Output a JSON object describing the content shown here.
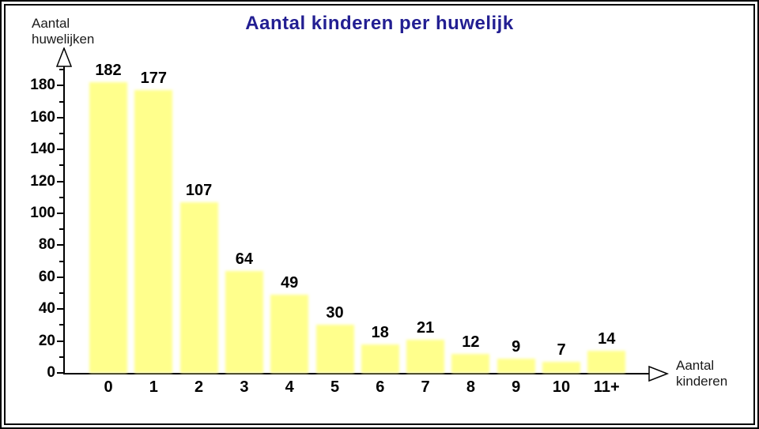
{
  "header": {
    "title": "Aantal kinderen per huwelijk"
  },
  "axes": {
    "y_label_line1": "Aantal",
    "y_label_line2": "huwelijken",
    "x_label_line1": "Aantal",
    "x_label_line2": "kinderen"
  },
  "colors": {
    "bar": "#FFFF8C",
    "title": "#221E92",
    "axis": "#000000",
    "label_text": "#000000"
  },
  "chart_data": {
    "type": "bar",
    "title": "Aantal kinderen per huwelijk",
    "xlabel": "Aantal kinderen",
    "ylabel": "Aantal huwelijken",
    "categories": [
      "0",
      "1",
      "2",
      "3",
      "4",
      "5",
      "6",
      "7",
      "8",
      "9",
      "10",
      "11+"
    ],
    "values": [
      182,
      177,
      107,
      64,
      49,
      30,
      18,
      21,
      12,
      9,
      7,
      14
    ],
    "ylim": [
      0,
      190
    ],
    "y_major_ticks": [
      0,
      20,
      40,
      60,
      80,
      100,
      120,
      140,
      160,
      180
    ],
    "y_minor_tick_step": 10,
    "grid": false,
    "legend": "none",
    "bar_labels_shown": true
  }
}
